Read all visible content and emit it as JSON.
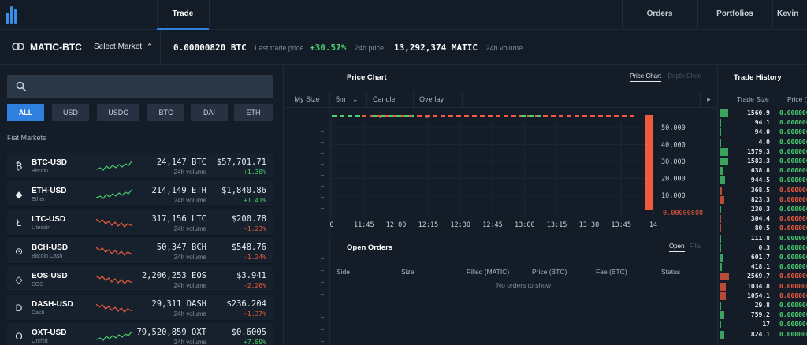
{
  "nav": {
    "tabs": [
      {
        "label": "Trade",
        "active": true
      },
      {
        "label": "Orders"
      },
      {
        "label": "Portfolios"
      },
      {
        "label": "Kevin"
      }
    ]
  },
  "ticker": {
    "pair": "MATIC-BTC",
    "select_label": "Select Market",
    "last_price": "0.00000820 BTC",
    "last_price_label": "Last trade price",
    "change": "+30.57%",
    "change_label": "24h price",
    "volume": "13,292,374 MATIC",
    "volume_label": "24h volume"
  },
  "markets": {
    "search_placeholder": "",
    "filters": [
      "ALL",
      "USD",
      "USDC",
      "BTC",
      "DAI",
      "ETH"
    ],
    "active_filter": "ALL",
    "section_label": "Fiat Markets",
    "rows": [
      {
        "symbol": "BTC-USD",
        "name": "Bitcoin",
        "icon": "bitcoin-icon",
        "glyph": "₿",
        "volume": "24,147 BTC",
        "volume_label": "24h volume",
        "price": "$57,701.71",
        "change": "+1.30%",
        "dir": "up"
      },
      {
        "symbol": "ETH-USD",
        "name": "Ether",
        "icon": "ethereum-icon",
        "glyph": "◆",
        "volume": "214,149 ETH",
        "volume_label": "24h volume",
        "price": "$1,840.86",
        "change": "+1.41%",
        "dir": "up"
      },
      {
        "symbol": "LTC-USD",
        "name": "Litecoin",
        "icon": "litecoin-icon",
        "glyph": "Ł",
        "volume": "317,156 LTC",
        "volume_label": "24h volume",
        "price": "$200.78",
        "change": "-1.23%",
        "dir": "down"
      },
      {
        "symbol": "BCH-USD",
        "name": "Bitcoin Cash",
        "icon": "bitcoin-cash-icon",
        "glyph": "⊙",
        "volume": "50,347 BCH",
        "volume_label": "24h volume",
        "price": "$548.76",
        "change": "-1.24%",
        "dir": "down"
      },
      {
        "symbol": "EOS-USD",
        "name": "EOS",
        "icon": "eos-icon",
        "glyph": "◇",
        "volume": "2,206,253 EOS",
        "volume_label": "24h volume",
        "price": "$3.941",
        "change": "-2.26%",
        "dir": "down"
      },
      {
        "symbol": "DASH-USD",
        "name": "Dash",
        "icon": "dash-icon",
        "glyph": "D",
        "volume": "29,311 DASH",
        "volume_label": "24h volume",
        "price": "$236.204",
        "change": "-1.37%",
        "dir": "down"
      },
      {
        "symbol": "OXT-USD",
        "name": "Orchid",
        "icon": "orchid-icon",
        "glyph": "O",
        "volume": "79,520,859 OXT",
        "volume_label": "24h volume",
        "price": "$0.6005",
        "change": "+7.89%",
        "dir": "up"
      }
    ]
  },
  "price_chart": {
    "title": "Price Chart",
    "toggle": [
      "Price Chart",
      "Depth Chart"
    ],
    "toolbar": {
      "my_size": "My Size",
      "interval": "5m",
      "chart_type": "Candle",
      "overlay": "Overlay"
    },
    "x_ticks": [
      "0",
      "11:45",
      "12:00",
      "12:15",
      "12:30",
      "12:45",
      "13:00",
      "13:15",
      "13:30",
      "13:45",
      "14"
    ],
    "y_ticks": [
      "50,000",
      "40,000",
      "30,000",
      "20,000",
      "10,000"
    ],
    "current_price_label": "0.00000808"
  },
  "open_orders": {
    "title": "Open Orders",
    "toggle": [
      "Open",
      "Fills"
    ],
    "columns": [
      "Side",
      "Size",
      "Filled (MATIC)",
      "Price (BTC)",
      "Fee (BTC)",
      "Status"
    ],
    "empty_text": "No orders to show"
  },
  "trade_history": {
    "title": "Trade History",
    "columns": [
      "Trade Size",
      "Price ("
    ],
    "rows": [
      {
        "size": "1560.9",
        "price": "0.000000",
        "dir": "up",
        "bar": 0.9
      },
      {
        "size": "94.1",
        "price": "0.000000",
        "dir": "up",
        "bar": 0.1
      },
      {
        "size": "94.0",
        "price": "0.000000",
        "dir": "up",
        "bar": 0.1
      },
      {
        "size": "4.0",
        "price": "0.000000",
        "dir": "up",
        "bar": 0.05
      },
      {
        "size": "1579.3",
        "price": "0.000000",
        "dir": "up",
        "bar": 0.9
      },
      {
        "size": "1583.3",
        "price": "0.000000",
        "dir": "up",
        "bar": 0.9
      },
      {
        "size": "638.8",
        "price": "0.000000",
        "dir": "up",
        "bar": 0.4
      },
      {
        "size": "944.5",
        "price": "0.000000",
        "dir": "up",
        "bar": 0.6
      },
      {
        "size": "368.5",
        "price": "0.000000",
        "dir": "down",
        "bar": 0.25
      },
      {
        "size": "823.3",
        "price": "0.000000",
        "dir": "down",
        "bar": 0.5
      },
      {
        "size": "230.3",
        "price": "0.000000",
        "dir": "up",
        "bar": 0.15
      },
      {
        "size": "304.4",
        "price": "0.000000",
        "dir": "down",
        "bar": 0.2
      },
      {
        "size": "80.5",
        "price": "0.000000",
        "dir": "down",
        "bar": 0.05
      },
      {
        "size": "111.8",
        "price": "0.000000",
        "dir": "up",
        "bar": 0.08
      },
      {
        "size": "0.3",
        "price": "0.000000",
        "dir": "up",
        "bar": 0.02
      },
      {
        "size": "601.7",
        "price": "0.000000",
        "dir": "up",
        "bar": 0.4
      },
      {
        "size": "418.1",
        "price": "0.000000",
        "dir": "up",
        "bar": 0.28
      },
      {
        "size": "2569.7",
        "price": "0.000000",
        "dir": "down",
        "bar": 1.0
      },
      {
        "size": "1034.8",
        "price": "0.000000",
        "dir": "down",
        "bar": 0.65
      },
      {
        "size": "1054.1",
        "price": "0.000000",
        "dir": "down",
        "bar": 0.66
      },
      {
        "size": "29.8",
        "price": "0.000000",
        "dir": "up",
        "bar": 0.03
      },
      {
        "size": "759.2",
        "price": "0.000000",
        "dir": "up",
        "bar": 0.48
      },
      {
        "size": "17",
        "price": "0.000000",
        "dir": "up",
        "bar": 0.02
      },
      {
        "size": "824.1",
        "price": "0.000000",
        "dir": "up",
        "bar": 0.52
      }
    ]
  },
  "colors": {
    "accent": "#2f7fe0",
    "up": "#4ad06e",
    "down": "#ef5b3c"
  }
}
